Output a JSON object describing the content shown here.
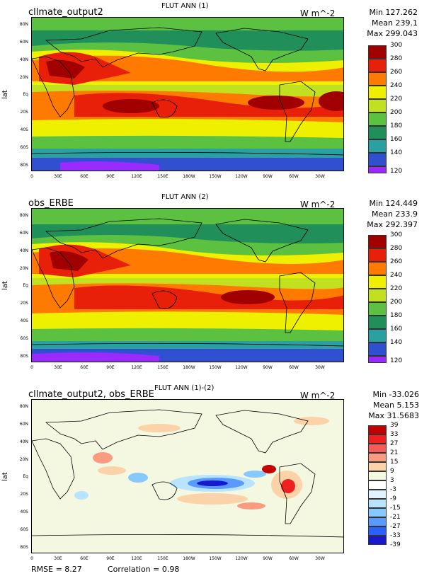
{
  "panels": [
    {
      "left_title": "cllmate_output2",
      "center_title": "FLUT ANN (1)",
      "units": "W m^-2",
      "stats": {
        "min": "Min 127.262",
        "mean": "Mean 239.1",
        "max": "Max 299.043"
      },
      "ylabel": "lat",
      "colorbar": {
        "labels": [
          "300",
          "280",
          "260",
          "240",
          "220",
          "200",
          "180",
          "160",
          "140",
          "120"
        ],
        "colors": [
          "#a00000",
          "#e8200a",
          "#ff7a00",
          "#eef000",
          "#c0e020",
          "#5cc040",
          "#208f5a",
          "#2aa0a0",
          "#3050d0",
          "#9a2aff"
        ]
      }
    },
    {
      "left_title": "obs_ERBE",
      "center_title": "FLUT ANN (2)",
      "units": "W m^-2",
      "stats": {
        "min": "Min 124.449",
        "mean": "Mean 233.9",
        "max": "Max 292.397"
      },
      "ylabel": "lat",
      "colorbar": {
        "labels": [
          "300",
          "280",
          "260",
          "240",
          "220",
          "200",
          "180",
          "160",
          "140",
          "120"
        ],
        "colors": [
          "#a00000",
          "#e8200a",
          "#ff7a00",
          "#eef000",
          "#c0e020",
          "#5cc040",
          "#208f5a",
          "#2aa0a0",
          "#3050d0",
          "#9a2aff"
        ]
      }
    },
    {
      "left_title": "cllmate_output2, obs_ERBE",
      "center_title": "FLUT ANN (1)-(2)",
      "units": "W m^-2",
      "stats": {
        "min": "Min -33.026",
        "mean": "Mean 5.153",
        "max": "Max 31.5683"
      },
      "ylabel": "lat",
      "colorbar": {
        "labels": [
          "39",
          "33",
          "27",
          "21",
          "15",
          "9",
          "3",
          "-3",
          "-9",
          "-15",
          "-21",
          "-27",
          "-33",
          "-39"
        ],
        "colors": [
          "#c40000",
          "#ee2020",
          "#f75a5a",
          "#fa9a80",
          "#fcd2a8",
          "#f5f8e0",
          "#ffffff",
          "#e0f4ff",
          "#b8e4ff",
          "#86c8ff",
          "#5a9aff",
          "#2a60ff",
          "#1818d0"
        ]
      },
      "footer": {
        "rmse": "RMSE = 8.27",
        "correlation": "Correlation = 0.98"
      }
    }
  ],
  "axes": {
    "lat_ticks": [
      "80N",
      "60N",
      "40N",
      "20N",
      "Eq",
      "20S",
      "40S",
      "60S",
      "80S"
    ],
    "lon_ticks": [
      "0",
      "30E",
      "60E",
      "90E",
      "120E",
      "150E",
      "180W",
      "150W",
      "120W",
      "90W",
      "60W",
      "30W"
    ]
  },
  "map_colors": {
    "low": "#9a2aff",
    "c140": "#3050d0",
    "c160": "#2aa0a0",
    "c180": "#208f5a",
    "c200": "#5cc040",
    "c220": "#c0e020",
    "c240": "#eef000",
    "c260": "#ff7a00",
    "c280": "#e8200a",
    "c300": "#a00000",
    "diff_bg": "#f5f8e0"
  }
}
